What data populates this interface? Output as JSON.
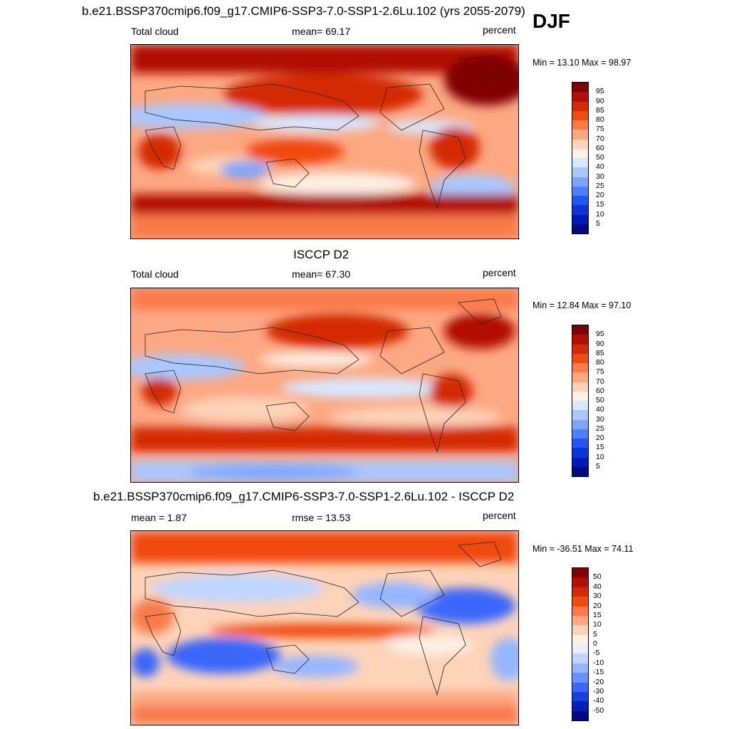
{
  "season": "DJF",
  "panels": [
    {
      "title": "b.e21.BSSP370cmip6.f09_g17.CMIP6-SSP3-7.0-SSP1-2.6Lu.102 (yrs 2055-2079)",
      "left_label": "Total cloud",
      "center_label": "mean=  69.17",
      "units": "percent",
      "minmax": "Min =  13.10 Max =  98.97",
      "colorbar_labels": [
        "95",
        "90",
        "85",
        "80",
        "75",
        "70",
        "60",
        "50",
        "40",
        "30",
        "25",
        "20",
        "15",
        "10",
        "5"
      ],
      "colors": [
        "#800000",
        "#b01000",
        "#d42a00",
        "#f04a0e",
        "#fa7a48",
        "#fca882",
        "#fdd3b8",
        "#fdf0e4",
        "#d8e8ff",
        "#a9c8ff",
        "#7aa6ff",
        "#4d7fff",
        "#2257f5",
        "#0a36d8",
        "#0218b4",
        "#020a80"
      ]
    },
    {
      "title": "ISCCP D2",
      "left_label": "Total cloud",
      "center_label": "mean=  67.30",
      "units": "percent",
      "minmax": "Min =  12.84 Max =  97.10",
      "colorbar_labels": [
        "95",
        "90",
        "85",
        "80",
        "75",
        "70",
        "60",
        "50",
        "40",
        "30",
        "25",
        "20",
        "15",
        "10",
        "5"
      ],
      "colors": [
        "#800000",
        "#b01000",
        "#d42a00",
        "#f04a0e",
        "#fa7a48",
        "#fca882",
        "#fdd3b8",
        "#fdf0e4",
        "#d8e8ff",
        "#a9c8ff",
        "#7aa6ff",
        "#4d7fff",
        "#2257f5",
        "#0a36d8",
        "#0218b4",
        "#020a80"
      ]
    },
    {
      "title": "b.e21.BSSP370cmip6.f09_g17.CMIP6-SSP3-7.0-SSP1-2.6Lu.102 - ISCCP D2",
      "left_label": "mean =   1.87",
      "center_label": "rmse =  13.53",
      "units": "percent",
      "minmax": "Min = -36.51 Max =  74.11",
      "colorbar_labels": [
        "50",
        "40",
        "30",
        "20",
        "15",
        "10",
        "5",
        "0",
        "-5",
        "-10",
        "-15",
        "-20",
        "-30",
        "-40",
        "-50"
      ],
      "colors": [
        "#800000",
        "#b01000",
        "#d42a00",
        "#f04a0e",
        "#fa7a48",
        "#fca882",
        "#fdd3b8",
        "#fdf0e4",
        "#e6efff",
        "#c0d6ff",
        "#94b6ff",
        "#6890ff",
        "#3a66fb",
        "#1640e0",
        "#0420b8",
        "#020a80"
      ]
    }
  ]
}
